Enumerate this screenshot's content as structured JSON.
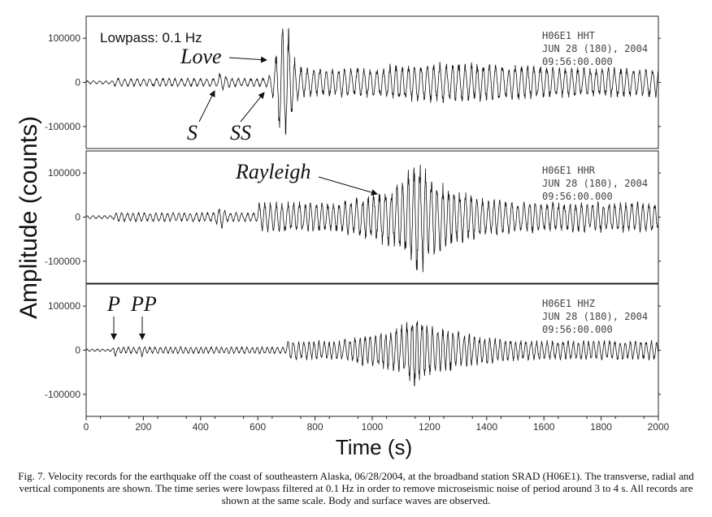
{
  "figure": {
    "lowpass_label": "Lowpass: 0.1 Hz",
    "ylabel": "Amplitude (counts)",
    "xlabel": "Time (s)",
    "caption": "Fig. 7. Velocity records for the earthquake off the coast of southeastern Alaska, 06/28/2004, at the broadband station SRAD (H06E1). The transverse, radial and vertical components are shown. The time series were lowpass filtered at 0.1 Hz in order to remove microseismic noise of period around 3 to 4 s. All records are shown at the same scale. Body and surface waves are observed."
  },
  "chart_data": {
    "type": "line",
    "xlim": [
      0,
      2000
    ],
    "ylim": [
      -150000,
      150000
    ],
    "x_ticks": [
      0,
      200,
      400,
      600,
      800,
      1000,
      1200,
      1400,
      1600,
      1800,
      2000
    ],
    "y_ticks": [
      100000,
      0,
      -100000
    ],
    "y_tick_labels": [
      "100000",
      "0",
      "-100000"
    ],
    "panels": [
      {
        "stamp": [
          "H06E1   HHT",
          "JUN 28 (180), 2004",
          "09:56:00.000"
        ],
        "annotations": [
          {
            "text": "Love",
            "time": 660
          },
          {
            "text": "S",
            "time": 465
          },
          {
            "text": "SS",
            "time": 635
          }
        ]
      },
      {
        "stamp": [
          "H06E1   HHR",
          "JUN 28 (180), 2004",
          "09:56:00.000"
        ],
        "annotations": [
          {
            "text": "Rayleigh",
            "time": 1055
          }
        ]
      },
      {
        "stamp": [
          "H06E1   HHZ",
          "JUN 28 (180), 2004",
          "09:56:00.000"
        ],
        "annotations": [
          {
            "text": "P",
            "time": 95
          },
          {
            "text": "PP",
            "time": 195
          }
        ]
      }
    ]
  }
}
